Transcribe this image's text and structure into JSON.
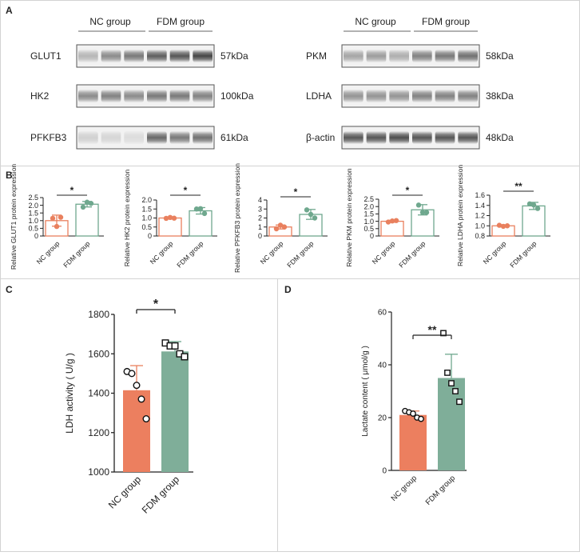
{
  "panel_letters": [
    "A",
    "B",
    "C",
    "D"
  ],
  "colors": {
    "nc": "#e9805e",
    "fdm": "#6fa88e",
    "nc_fill": "#ec7f5f",
    "fdm_fill": "#7fae99",
    "text": "#222222",
    "border": "#cfcfcf"
  },
  "blots": {
    "left": {
      "groups": [
        "NC group",
        "FDM group"
      ],
      "rows": [
        {
          "label": "GLUT1",
          "kda": "57kDa",
          "intensity": [
            0.3,
            0.55,
            0.65,
            0.8,
            0.85,
            0.95
          ]
        },
        {
          "label": "HK2",
          "kda": "100kDa",
          "intensity": [
            0.55,
            0.6,
            0.55,
            0.65,
            0.65,
            0.6
          ]
        },
        {
          "label": "PFKFB3",
          "kda": "61kDa",
          "intensity": [
            0.15,
            0.12,
            0.08,
            0.75,
            0.65,
            0.7
          ]
        }
      ]
    },
    "right": {
      "groups": [
        "NC group",
        "FDM group"
      ],
      "rows": [
        {
          "label": "PKM",
          "kda": "58kDa",
          "intensity": [
            0.4,
            0.45,
            0.35,
            0.6,
            0.65,
            0.7
          ]
        },
        {
          "label": "LDHA",
          "kda": "38kDa",
          "intensity": [
            0.5,
            0.5,
            0.5,
            0.6,
            0.6,
            0.6
          ]
        },
        {
          "label": "β-actin",
          "kda": "48kDa",
          "intensity": [
            0.85,
            0.85,
            0.9,
            0.85,
            0.85,
            0.85
          ]
        }
      ]
    }
  },
  "chart_data": [
    {
      "id": "B1",
      "type": "bar",
      "categories": [
        "NC group",
        "FDM group"
      ],
      "ylabel": "Relative GLUT1 protein expression",
      "ylim": [
        0,
        2.5
      ],
      "ticks": [
        0,
        0.5,
        1.0,
        1.5,
        2.0,
        2.5
      ],
      "tick_labels": [
        "0",
        "0.5",
        "1.0",
        "1.5",
        "2.0",
        "2.5"
      ],
      "values": [
        1.0,
        2.07
      ],
      "err": [
        0.36,
        0.18
      ],
      "points": [
        [
          1.15,
          0.62,
          1.22
        ],
        [
          1.88,
          2.2,
          2.12
        ]
      ],
      "sig": "*"
    },
    {
      "id": "B2",
      "type": "bar",
      "categories": [
        "NC group",
        "FDM group"
      ],
      "ylabel": "Relative HK2 protein expression",
      "ylim": [
        0,
        2.0
      ],
      "ticks": [
        0,
        0.5,
        1.0,
        1.5,
        2.0
      ],
      "tick_labels": [
        "0",
        "0.5",
        "1.0",
        "1.5",
        "2.0"
      ],
      "values": [
        1.0,
        1.4
      ],
      "err": [
        0.05,
        0.18
      ],
      "points": [
        [
          0.98,
          1.03,
          0.99
        ],
        [
          1.5,
          1.52,
          1.25
        ]
      ],
      "sig": "*"
    },
    {
      "id": "B3",
      "type": "bar",
      "categories": [
        "NC group",
        "FDM group"
      ],
      "ylabel": "Relative PFKFB3 protein expression",
      "ylim": [
        0,
        4
      ],
      "ticks": [
        0,
        1,
        2,
        3,
        4
      ],
      "tick_labels": [
        "0",
        "1",
        "2",
        "3",
        "4"
      ],
      "values": [
        1.0,
        2.4
      ],
      "err": [
        0.22,
        0.55
      ],
      "points": [
        [
          0.8,
          1.2,
          1.0
        ],
        [
          2.9,
          2.4,
          2.0
        ]
      ],
      "sig": "*"
    },
    {
      "id": "B4",
      "type": "bar",
      "categories": [
        "NC group",
        "FDM group"
      ],
      "ylabel": "Relative PKM protein expression",
      "ylim": [
        0,
        2.5
      ],
      "ticks": [
        0,
        0.5,
        1.0,
        1.5,
        2.0,
        2.5
      ],
      "tick_labels": [
        "0",
        "0.5",
        "1.0",
        "1.5",
        "2.0",
        "2.5"
      ],
      "values": [
        1.0,
        1.78
      ],
      "err": [
        0.07,
        0.35
      ],
      "points": [
        [
          0.95,
          1.02,
          1.05
        ],
        [
          2.1,
          1.6,
          1.6
        ]
      ],
      "sig": "*"
    },
    {
      "id": "B5",
      "type": "bar",
      "categories": [
        "NC group",
        "FDM group"
      ],
      "ylabel": "Relative LDHA protein expression",
      "ylim": [
        0.8,
        1.6
      ],
      "ticks": [
        0.8,
        1.0,
        1.2,
        1.4,
        1.6
      ],
      "tick_labels": [
        "0.8",
        "1.0",
        "1.2",
        "1.4",
        "1.6"
      ],
      "values": [
        1.0,
        1.39
      ],
      "err": [
        0.02,
        0.07
      ],
      "points": [
        [
          1.01,
          0.99,
          1.0
        ],
        [
          1.43,
          1.41,
          1.34
        ]
      ],
      "sig": "**"
    },
    {
      "id": "C",
      "type": "bar",
      "categories": [
        "NC group",
        "FDM group"
      ],
      "ylabel": "LDH activity ( U/g )",
      "ylim": [
        1000,
        1800
      ],
      "ticks": [
        1000,
        1200,
        1400,
        1600,
        1800
      ],
      "tick_labels": [
        "1000",
        "1200",
        "1400",
        "1600",
        "1800"
      ],
      "values": [
        1415,
        1612
      ],
      "err": [
        125,
        50
      ],
      "points": [
        [
          1510,
          1500,
          1440,
          1370,
          1270
        ],
        [
          1655,
          1640,
          1640,
          1600,
          1585
        ]
      ],
      "marker": [
        "circle",
        "square"
      ],
      "sig": "*"
    },
    {
      "id": "D",
      "type": "bar",
      "categories": [
        "NC group",
        "FDM group"
      ],
      "ylabel": "Lactate content ( μmol/g )",
      "ylim": [
        0,
        60
      ],
      "ticks": [
        0,
        20,
        40,
        60
      ],
      "tick_labels": [
        "0",
        "20",
        "40",
        "60"
      ],
      "values": [
        21,
        35
      ],
      "err": [
        1.5,
        9
      ],
      "points": [
        [
          22.5,
          22.0,
          21.5,
          20.0,
          19.5
        ],
        [
          52,
          37,
          33,
          30,
          26
        ]
      ],
      "marker": [
        "circle",
        "square"
      ],
      "sig": "**"
    }
  ]
}
